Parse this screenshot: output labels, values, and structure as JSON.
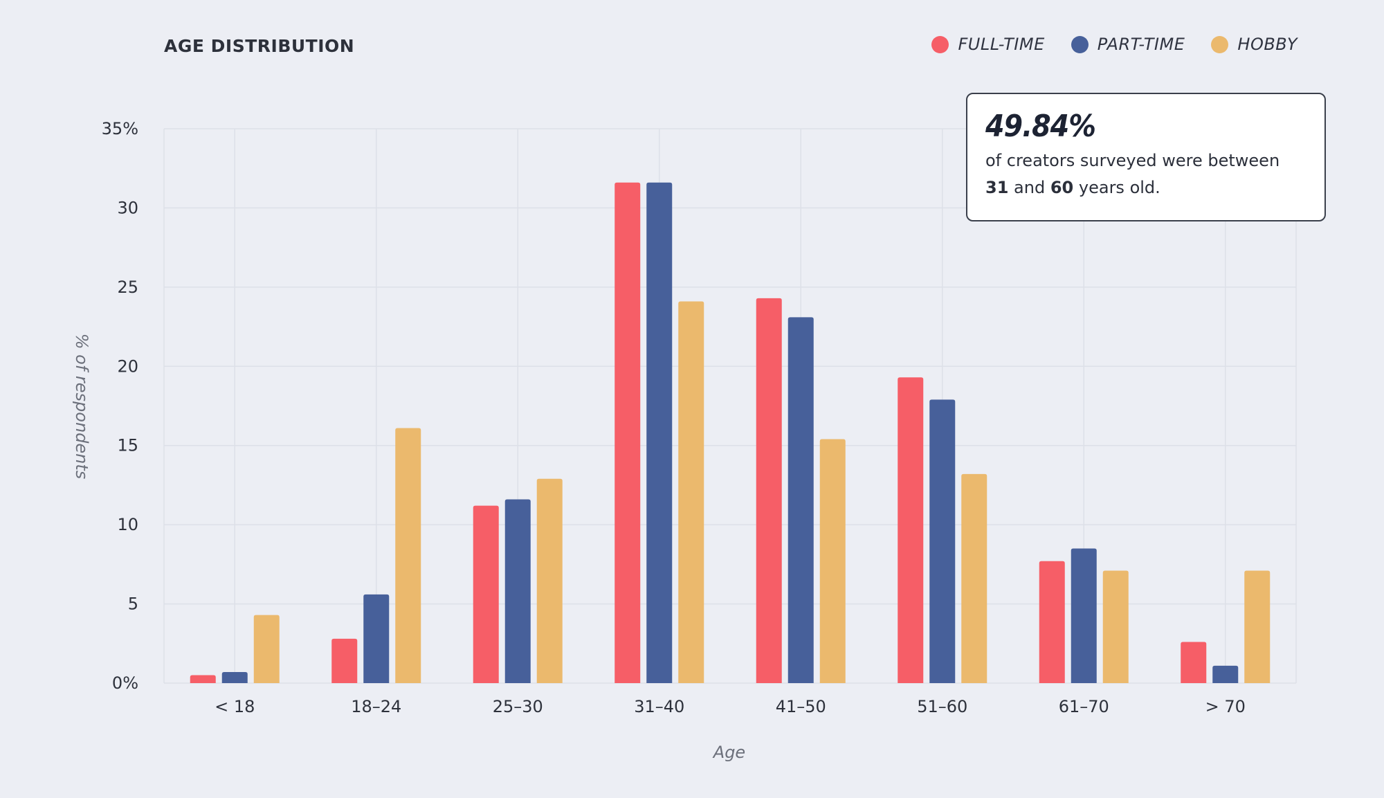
{
  "chart_data": {
    "type": "bar",
    "title": "AGE DISTRIBUTION",
    "xlabel": "Age",
    "ylabel": "% of respondents",
    "categories": [
      "< 18",
      "18–24",
      "25–30",
      "31–40",
      "41–50",
      "51–60",
      "61–70",
      "> 70"
    ],
    "series": [
      {
        "name": "FULL-TIME",
        "color": "#f65e67",
        "values": [
          0.5,
          2.8,
          11.2,
          31.6,
          24.3,
          19.3,
          7.7,
          2.6
        ]
      },
      {
        "name": "PART-TIME",
        "color": "#47609a",
        "values": [
          0.7,
          5.6,
          11.6,
          31.6,
          23.1,
          17.9,
          8.5,
          1.1
        ]
      },
      {
        "name": "HOBBY",
        "color": "#ebb96d",
        "values": [
          4.3,
          16.1,
          12.9,
          24.1,
          15.4,
          13.2,
          7.1,
          7.1
        ]
      }
    ],
    "ylim": [
      0,
      35
    ],
    "yticks": [
      0,
      5,
      10,
      15,
      20,
      25,
      30,
      35
    ],
    "ytick_labels": [
      "0%",
      "5",
      "10",
      "15",
      "20",
      "25",
      "30",
      "35%"
    ],
    "grid": true,
    "legend_position": "top-right"
  },
  "callout": {
    "value": "49.84%",
    "text_prefix": "of creators surveyed were between",
    "low_age": "31",
    "connector": "and",
    "high_age": "60",
    "text_suffix": "years old."
  }
}
